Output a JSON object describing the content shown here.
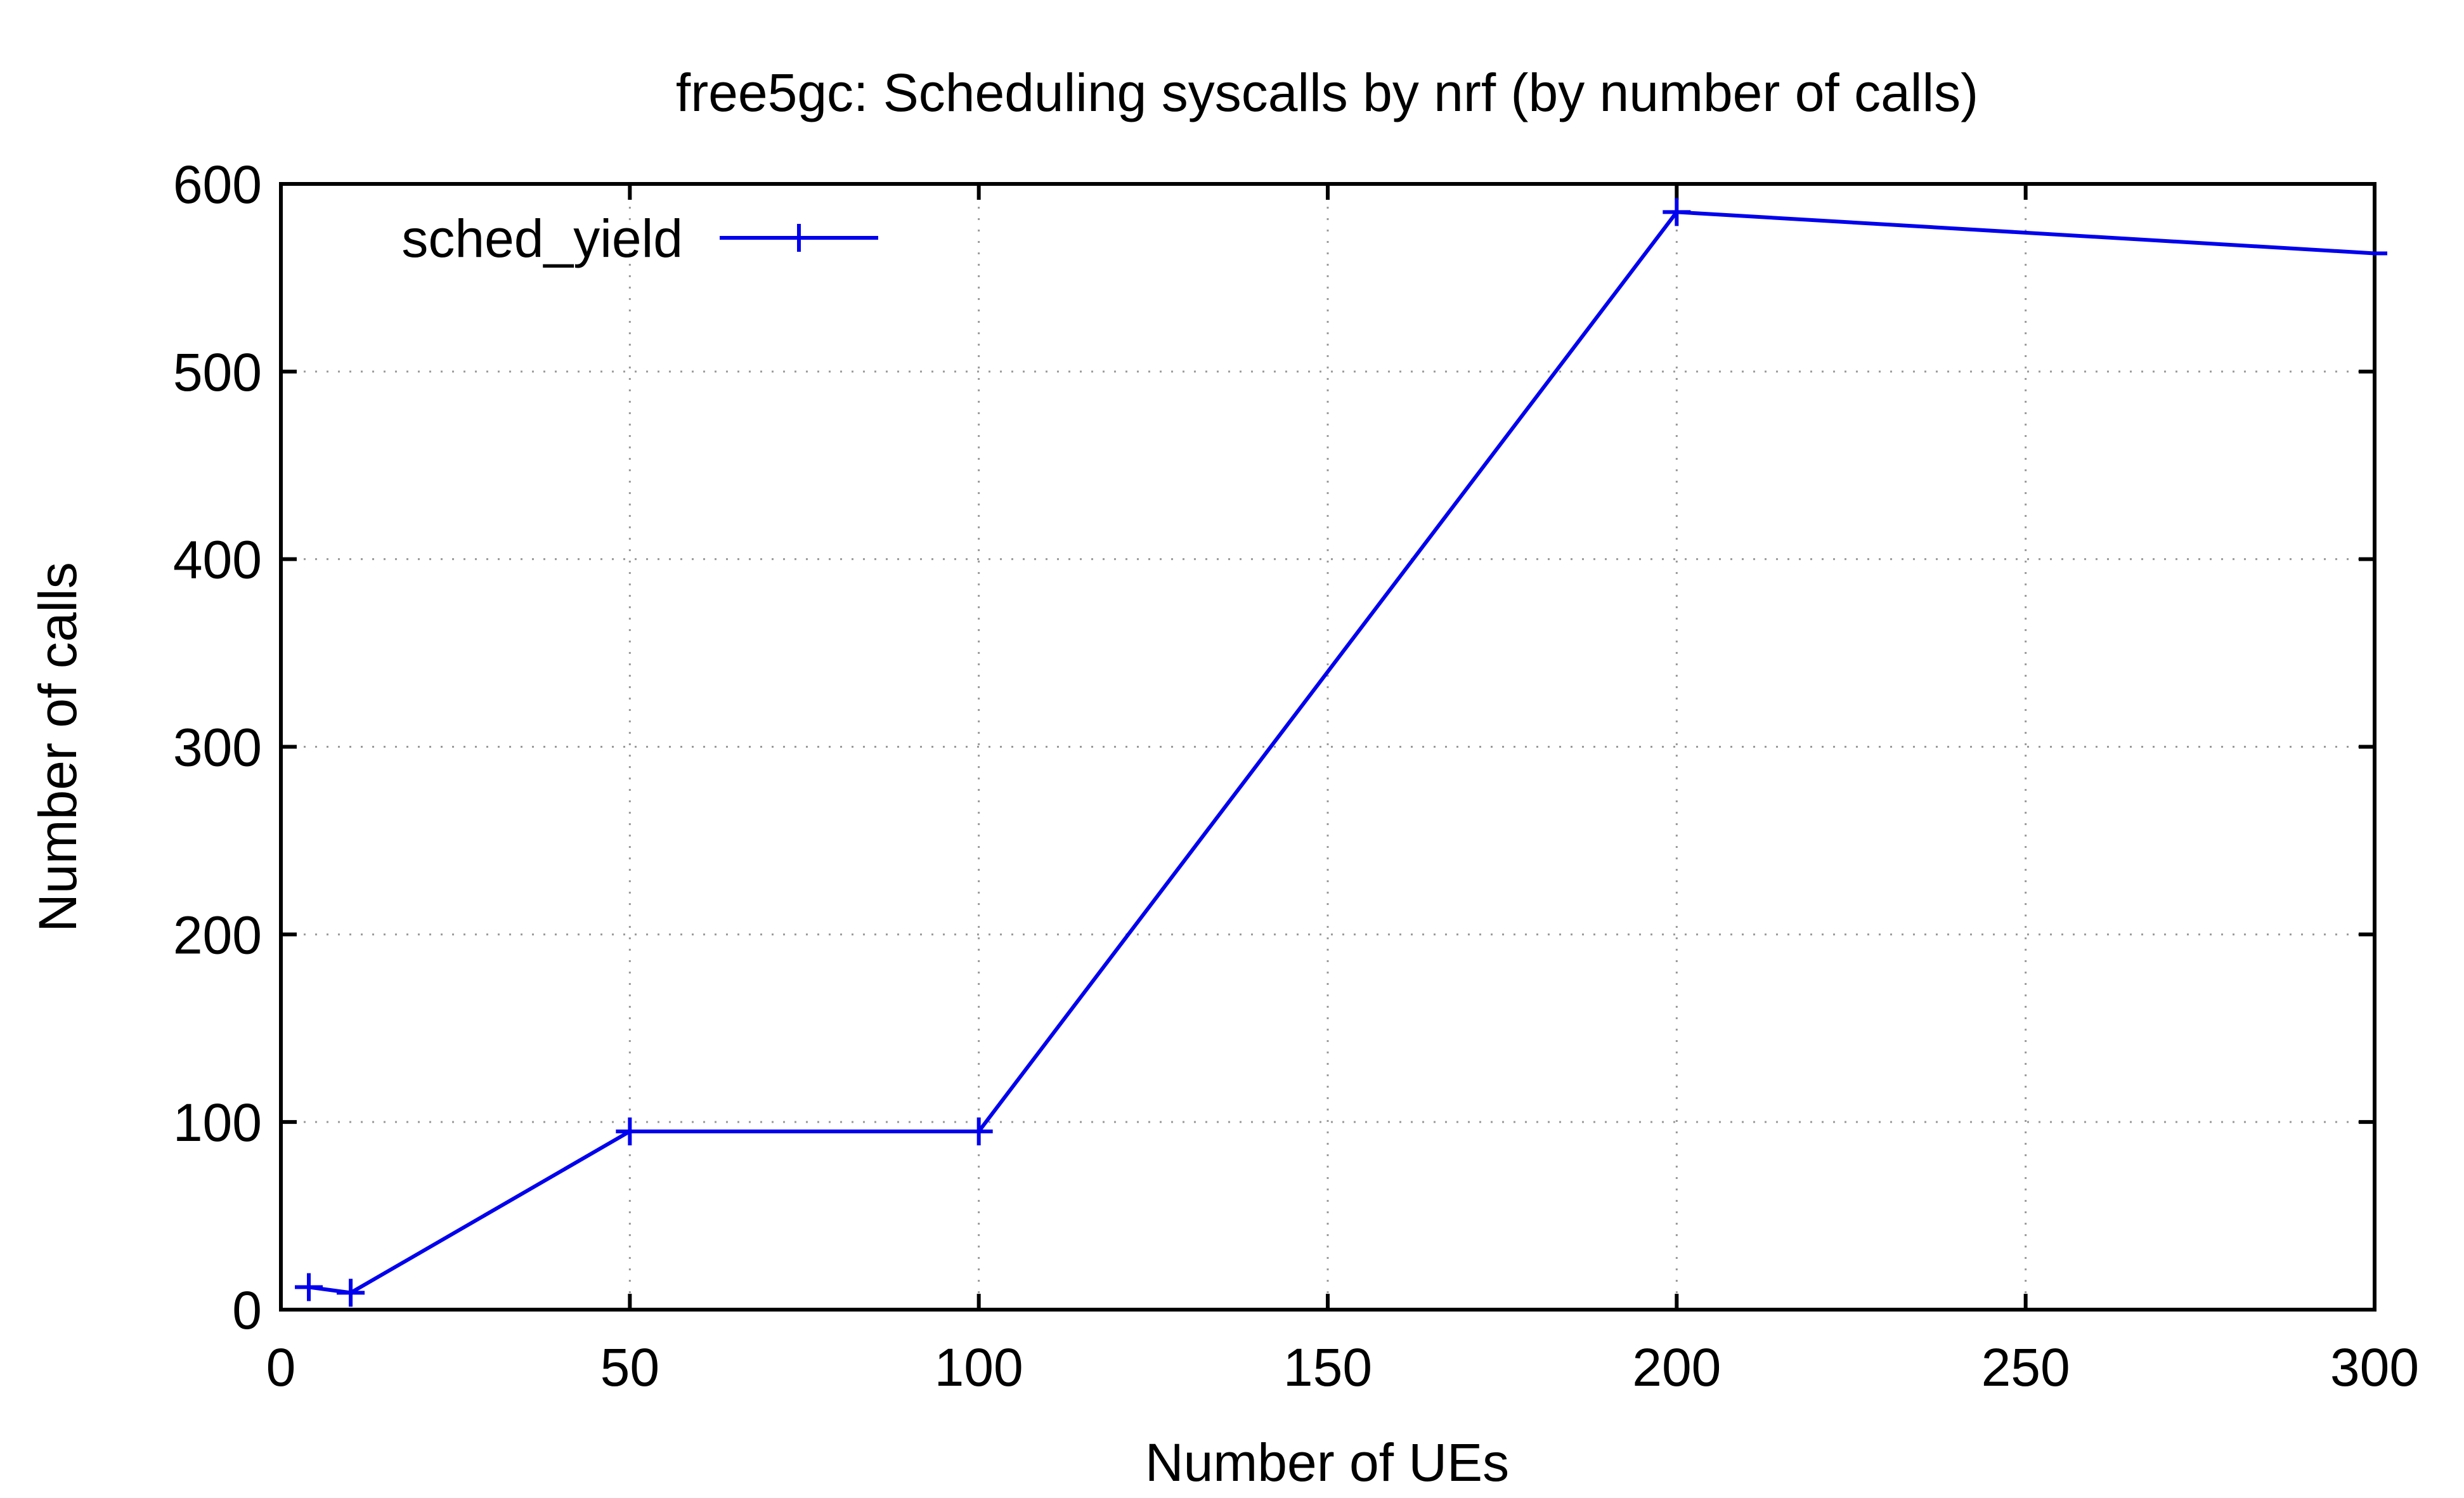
{
  "chart_data": {
    "type": "line",
    "title": "free5gc: Scheduling syscalls by nrf (by number of calls)",
    "xlabel": "Number of UEs",
    "ylabel": "Number of calls",
    "xlim": [
      0,
      300
    ],
    "ylim": [
      0,
      600
    ],
    "xticks": [
      0,
      50,
      100,
      150,
      200,
      250,
      300
    ],
    "yticks": [
      0,
      100,
      200,
      300,
      400,
      500,
      600
    ],
    "grid": true,
    "legend_position": "top-left",
    "series": [
      {
        "name": "sched_yield",
        "color": "#0000ee",
        "marker": "plus",
        "x": [
          4,
          10,
          50,
          100,
          200,
          300
        ],
        "y": [
          12,
          9,
          95,
          95,
          585,
          563
        ]
      }
    ]
  }
}
